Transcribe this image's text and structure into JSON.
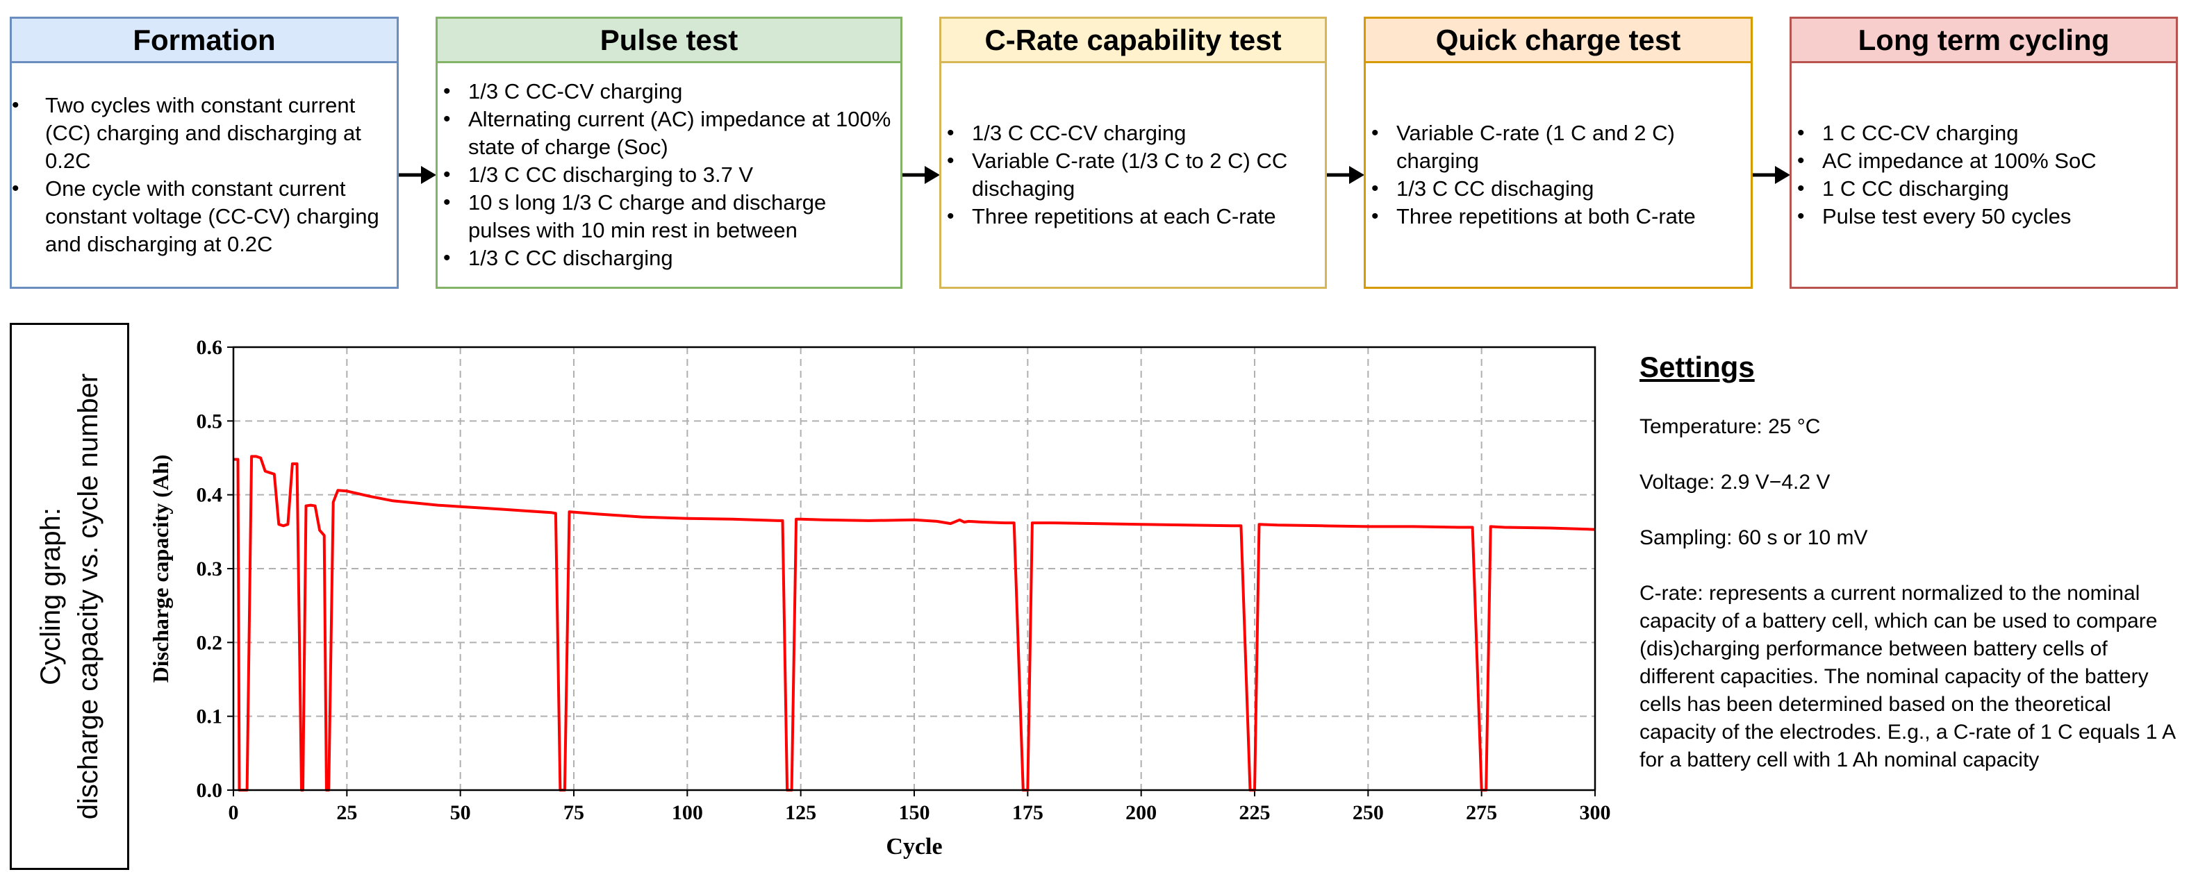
{
  "stages": [
    {
      "title": "Formation",
      "items": [
        "Two cycles with constant current (CC) charging and discharging at 0.2C",
        "One cycle with constant current constant voltage (CC-CV) charging and discharging at 0.2C"
      ]
    },
    {
      "title": "Pulse test",
      "items": [
        "1/3 C CC-CV charging",
        "Alternating current (AC) impedance at 100% state of charge (Soc)",
        "1/3 C CC discharging to 3.7 V",
        "10 s long 1/3 C charge and discharge pulses with 10 min rest in between",
        "1/3 C CC discharging"
      ]
    },
    {
      "title": "C-Rate capability test",
      "items": [
        "1/3 C CC-CV charging",
        "Variable C-rate (1/3 C to 2 C) CC dischaging",
        "Three repetitions at each C-rate"
      ]
    },
    {
      "title": "Quick charge test",
      "items": [
        "Variable C-rate (1 C and 2 C) charging",
        "1/3 C CC dischaging",
        "Three repetitions at both C-rate"
      ]
    },
    {
      "title": "Long term cycling",
      "items": [
        "1 C CC-CV charging",
        "AC impedance at 100% SoC",
        "1 C CC discharging",
        "Pulse test every 50 cycles"
      ]
    }
  ],
  "side_label": {
    "line1": "Cycling graph:",
    "line2": "discharge capacity vs. cycle number"
  },
  "settings": {
    "title": "Settings",
    "temperature": "Temperature: 25 °C",
    "voltage": "Voltage: 2.9 V−4.2 V",
    "sampling": "Sampling: 60 s or 10 mV",
    "crate": "C-rate: represents a current normalized to the nominal capacity of a battery cell, which can be used to compare (dis)charging performance between battery cells of different capacities. The nominal capacity of the battery cells has been determined based on the theoretical capacity of the electrodes. E.g., a C-rate of 1 C equals 1 A for a battery cell with 1 Ah nominal capacity"
  },
  "colors": {
    "line": "#ff0000",
    "grid": "#b0b0b0"
  },
  "chart_data": {
    "type": "line",
    "xlabel": "Cycle",
    "ylabel": "Discharge capacity (Ah)",
    "xlim": [
      0,
      300
    ],
    "ylim": [
      0,
      0.6
    ],
    "xticks": [
      0,
      25,
      50,
      75,
      100,
      125,
      150,
      175,
      200,
      225,
      250,
      275,
      300
    ],
    "yticks": [
      0.0,
      0.1,
      0.2,
      0.3,
      0.4,
      0.5,
      0.6
    ],
    "grid": true,
    "series": [
      {
        "x": [
          0,
          1,
          1.3,
          2,
          3,
          4,
          5,
          6,
          7,
          8,
          9,
          10,
          11,
          12,
          13,
          14,
          15,
          15.3,
          16,
          17,
          18,
          19,
          20,
          20.5,
          21,
          22,
          23,
          25,
          30,
          35,
          40,
          45,
          50,
          55,
          60,
          65,
          70,
          71,
          72,
          73,
          74,
          80,
          90,
          100,
          110,
          120,
          121,
          122,
          123,
          124,
          125,
          130,
          140,
          150,
          155,
          158,
          160,
          161,
          162,
          165,
          170,
          172,
          174,
          175,
          176,
          180,
          190,
          200,
          210,
          220,
          222,
          224,
          225,
          226,
          230,
          240,
          250,
          260,
          270,
          273,
          275,
          276,
          277,
          280,
          290,
          300
        ],
        "y": [
          0.448,
          0.448,
          0.0,
          0.0,
          0.0,
          0.452,
          0.452,
          0.45,
          0.432,
          0.43,
          0.428,
          0.36,
          0.358,
          0.36,
          0.442,
          0.442,
          0.0,
          0.0,
          0.385,
          0.386,
          0.385,
          0.352,
          0.345,
          0.0,
          0.0,
          0.39,
          0.406,
          0.405,
          0.398,
          0.392,
          0.389,
          0.386,
          0.384,
          0.382,
          0.38,
          0.378,
          0.376,
          0.375,
          0.0,
          0.0,
          0.377,
          0.374,
          0.37,
          0.368,
          0.367,
          0.365,
          0.365,
          0.0,
          0.0,
          0.367,
          0.367,
          0.366,
          0.365,
          0.366,
          0.364,
          0.361,
          0.366,
          0.363,
          0.364,
          0.363,
          0.362,
          0.362,
          0.0,
          0.0,
          0.362,
          0.362,
          0.361,
          0.36,
          0.359,
          0.358,
          0.358,
          0.0,
          0.0,
          0.36,
          0.359,
          0.358,
          0.357,
          0.357,
          0.356,
          0.356,
          0.0,
          0.0,
          0.357,
          0.356,
          0.355,
          0.353
        ]
      }
    ]
  }
}
